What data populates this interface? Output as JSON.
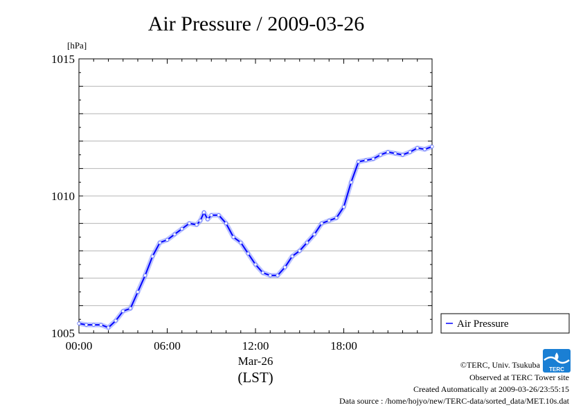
{
  "chart_data": {
    "type": "line",
    "title": "Air Pressure / 2009-03-26",
    "ylabel": "[hPa]",
    "xlabel": "Mar-26",
    "xunit": "(LST)",
    "xlim": [
      0,
      24
    ],
    "ylim": [
      1005,
      1015
    ],
    "x_ticks": [
      {
        "value": 0,
        "label": "00:00"
      },
      {
        "value": 6,
        "label": "06:00"
      },
      {
        "value": 12,
        "label": "12:00"
      },
      {
        "value": 18,
        "label": "18:00"
      }
    ],
    "y_ticks": [
      {
        "value": 1005,
        "label": "1005"
      },
      {
        "value": 1010,
        "label": "1010"
      },
      {
        "value": 1015,
        "label": "1015"
      }
    ],
    "grid": true,
    "legend_position": "bottom-right-outside",
    "series": [
      {
        "name": "Air Pressure",
        "color": "#0000ff",
        "x": [
          0,
          0.5,
          1,
          1.5,
          2,
          2.5,
          3,
          3.5,
          4,
          4.5,
          5,
          5.5,
          6,
          6.5,
          7,
          7.5,
          8,
          8.25,
          8.5,
          8.75,
          9,
          9.5,
          10,
          10.5,
          11,
          11.5,
          12,
          12.5,
          13,
          13.5,
          14,
          14.5,
          15,
          15.5,
          16,
          16.5,
          17,
          17.5,
          18,
          18.5,
          19,
          19.5,
          20,
          20.5,
          21,
          21.5,
          22,
          22.5,
          23,
          23.5,
          24
        ],
        "y": [
          1005.35,
          1005.3,
          1005.3,
          1005.3,
          1005.2,
          1005.45,
          1005.8,
          1005.9,
          1006.5,
          1007.1,
          1007.8,
          1008.3,
          1008.4,
          1008.6,
          1008.8,
          1009.0,
          1008.95,
          1009.1,
          1009.4,
          1009.15,
          1009.3,
          1009.3,
          1009.0,
          1008.5,
          1008.3,
          1007.9,
          1007.5,
          1007.2,
          1007.1,
          1007.1,
          1007.4,
          1007.8,
          1008.0,
          1008.3,
          1008.6,
          1009.0,
          1009.1,
          1009.2,
          1009.6,
          1010.5,
          1011.25,
          1011.3,
          1011.35,
          1011.5,
          1011.6,
          1011.55,
          1011.5,
          1011.6,
          1011.75,
          1011.7,
          1011.8
        ]
      }
    ]
  },
  "credits": {
    "copyright": "©TERC, Univ. Tsukuba",
    "observed": "Observed at TERC Tower site",
    "created": "Created Automatically at 2009-03-26/23:55:15",
    "source": "Data source : /home/hojyo/new/TERC-data/sorted_data/MET.10s.dat"
  },
  "logo_text": "TERC"
}
